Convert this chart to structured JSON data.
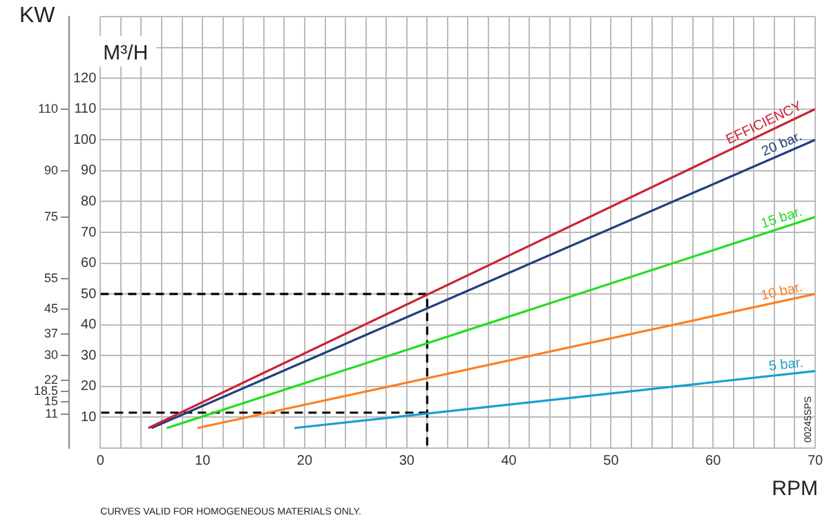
{
  "chart_data": {
    "type": "line",
    "xlabel": "RPM",
    "ylabel": "M³/H",
    "y2label": "KW",
    "xlim": [
      0,
      70
    ],
    "xticks": [
      0,
      {
        "value": 2,
        "label": null
      },
      {
        "value": 4,
        "label": null
      },
      {
        "value": 6,
        "label": null
      },
      {
        "value": 8,
        "label": null
      },
      10,
      {
        "value": 12,
        "label": null
      },
      {
        "value": 14,
        "label": null
      },
      {
        "value": 16,
        "label": null
      },
      {
        "value": 18,
        "label": null
      },
      20,
      {
        "value": 22,
        "label": null
      },
      {
        "value": 24,
        "label": null
      },
      {
        "value": 26,
        "label": null
      },
      {
        "value": 28,
        "label": null
      },
      30,
      {
        "value": 32,
        "label": null
      },
      {
        "value": 34,
        "label": null
      },
      {
        "value": 36,
        "label": null
      },
      {
        "value": 38,
        "label": null
      },
      40,
      {
        "value": 42,
        "label": null
      },
      {
        "value": 44,
        "label": null
      },
      {
        "value": 46,
        "label": null
      },
      {
        "value": 48,
        "label": null
      },
      50,
      {
        "value": 52,
        "label": null
      },
      {
        "value": 54,
        "label": null
      },
      {
        "value": 56,
        "label": null
      },
      {
        "value": 58,
        "label": null
      },
      60,
      {
        "value": 62,
        "label": null
      },
      {
        "value": 64,
        "label": null
      },
      {
        "value": 66,
        "label": null
      },
      {
        "value": 68,
        "label": null
      },
      70
    ],
    "ylim": [
      0,
      140
    ],
    "yticks": [
      10,
      20,
      30,
      40,
      50,
      60,
      70,
      80,
      90,
      100,
      110,
      120,
      {
        "value": 130,
        "label": null
      },
      {
        "value": 140,
        "label": null
      }
    ],
    "y2lim": [
      0,
      140
    ],
    "y2ticks": [
      11,
      15,
      18.5,
      22,
      30,
      37,
      45,
      55,
      75,
      90,
      110
    ],
    "grid": true,
    "legend": false,
    "marker": "none",
    "series": [
      {
        "name": "EFFICIENCY",
        "color": "#cc2233",
        "x": [
          4.7,
          70
        ],
        "values": [
          6.5,
          110
        ]
      },
      {
        "name": "20 bar.",
        "color": "#1f3f7f",
        "x": [
          5,
          70
        ],
        "values": [
          6.5,
          100
        ]
      },
      {
        "name": "15 bar.",
        "color": "#22dd22",
        "x": [
          6.5,
          70
        ],
        "values": [
          6.5,
          75
        ]
      },
      {
        "name": "10 bar.",
        "color": "#ff7f1f",
        "x": [
          9.5,
          70
        ],
        "values": [
          6.5,
          50
        ]
      },
      {
        "name": "5 bar.",
        "color": "#1a9fd0",
        "x": [
          19,
          70
        ],
        "values": [
          6.5,
          25
        ]
      },
      {
        "color": "#000000",
        "line_style": "dashed",
        "x": [
          0,
          32,
          32
        ],
        "values": [
          50,
          50,
          0
        ]
      },
      {
        "color": "#000000",
        "line_style": "dashed",
        "x": [
          32,
          0
        ],
        "values": [
          11.5,
          11.5
        ]
      }
    ],
    "annotations": [
      "CURVES VALID FOR HOMOGENEOUS MATERIALS ONLY.",
      "00245SPS"
    ]
  }
}
